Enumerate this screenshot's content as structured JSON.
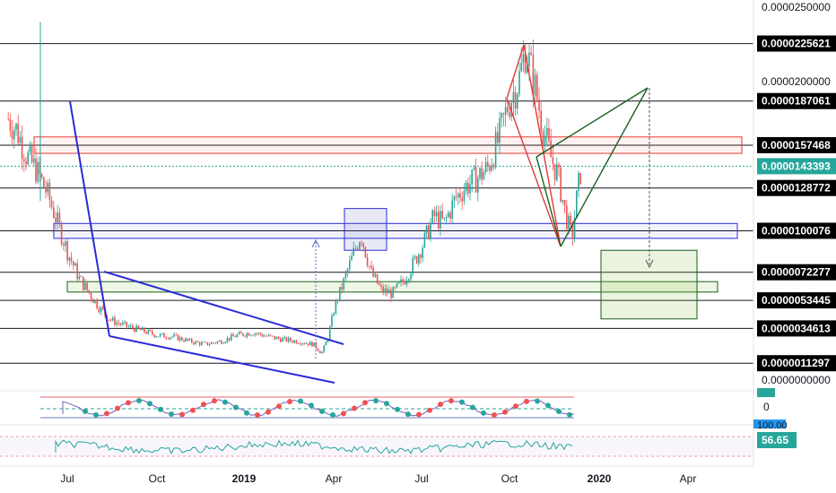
{
  "colors": {
    "background": "#ffffff",
    "up_candle": "#26a69a",
    "down_candle": "#ef5350",
    "hline": "#131722",
    "blue_drawing": "#2a2ad8",
    "red_drawing": "#e53935",
    "green_drawing": "#1b5e20",
    "current_price_line": "#26a69a",
    "rsi_line": "#26a69a",
    "osc_upper": "#ef9a9a",
    "osc_lower": "#9fa8da"
  },
  "price_axis": {
    "ticks": [
      "0.0000250000",
      "0.0000200000",
      "0.0000000000"
    ],
    "levels": [
      {
        "label": "0.0000225621",
        "value": 2.25621e-05
      },
      {
        "label": "0.0000187061",
        "value": 1.87061e-05
      },
      {
        "label": "0.0000157468",
        "value": 1.57468e-05
      },
      {
        "label": "0.0000128772",
        "value": 1.28772e-05
      },
      {
        "label": "0.0000100076",
        "value": 1.00076e-05
      },
      {
        "label": "0.0000072277",
        "value": 7.2277e-06
      },
      {
        "label": "0.0000053445",
        "value": 5.3445e-06
      },
      {
        "label": "0.0000034613",
        "value": 3.4613e-06
      },
      {
        "label": "0.0000011297",
        "value": 1.1297e-06
      }
    ],
    "current_price": "0.0000143393",
    "osc_zero": "0",
    "osc_hundred": "100.00",
    "rsi_value": "56.65"
  },
  "time_axis": [
    {
      "label": "Jul",
      "bold": false
    },
    {
      "label": "Oct",
      "bold": false
    },
    {
      "label": "2019",
      "bold": true
    },
    {
      "label": "Apr",
      "bold": false
    },
    {
      "label": "Jul",
      "bold": false
    },
    {
      "label": "Oct",
      "bold": false
    },
    {
      "label": "2020",
      "bold": true
    },
    {
      "label": "Apr",
      "bold": false
    }
  ],
  "chart_data": {
    "type": "candlestick",
    "ylim": [
      0,
      2.65e-05
    ],
    "x_range": [
      "2018-05-20",
      "2020-05-20"
    ],
    "price_path": [
      [
        "2018-05-28",
        1.75e-05
      ],
      [
        "2018-06-05",
        1.68e-05
      ],
      [
        "2018-06-15",
        1.5e-05
      ],
      [
        "2018-06-25",
        1.4e-05
      ],
      [
        "2018-07-05",
        1.25e-05
      ],
      [
        "2018-07-15",
        1.05e-05
      ],
      [
        "2018-07-25",
        8.5e-06
      ],
      [
        "2018-08-05",
        6.8e-06
      ],
      [
        "2018-08-15",
        5.8e-06
      ],
      [
        "2018-08-25",
        4.8e-06
      ],
      [
        "2018-09-05",
        4e-06
      ],
      [
        "2018-09-20",
        3.6e-06
      ],
      [
        "2018-10-05",
        3.3e-06
      ],
      [
        "2018-10-20",
        3e-06
      ],
      [
        "2018-11-05",
        2.9e-06
      ],
      [
        "2018-11-20",
        2.6e-06
      ],
      [
        "2018-12-05",
        2.4e-06
      ],
      [
        "2018-12-20",
        2.6e-06
      ],
      [
        "2019-01-05",
        3e-06
      ],
      [
        "2019-01-20",
        3.2e-06
      ],
      [
        "2019-02-05",
        2.9e-06
      ],
      [
        "2019-02-20",
        2.7e-06
      ],
      [
        "2019-03-05",
        2.6e-06
      ],
      [
        "2019-03-20",
        2.4e-06
      ],
      [
        "2019-03-28",
        1.8e-06
      ],
      [
        "2019-04-03",
        2.8e-06
      ],
      [
        "2019-04-10",
        5e-06
      ],
      [
        "2019-04-18",
        6.5e-06
      ],
      [
        "2019-04-28",
        8.5e-06
      ],
      [
        "2019-05-05",
        9.8e-06
      ],
      [
        "2019-05-15",
        7.2e-06
      ],
      [
        "2019-05-25",
        6e-06
      ],
      [
        "2019-06-05",
        5.8e-06
      ],
      [
        "2019-06-15",
        6.6e-06
      ],
      [
        "2019-06-25",
        7.8e-06
      ],
      [
        "2019-07-05",
        9.2e-06
      ],
      [
        "2019-07-15",
        1.1e-05
      ],
      [
        "2019-07-25",
        1.05e-05
      ],
      [
        "2019-08-05",
        1.22e-05
      ],
      [
        "2019-08-15",
        1.3e-05
      ],
      [
        "2019-08-25",
        1.35e-05
      ],
      [
        "2019-09-05",
        1.42e-05
      ],
      [
        "2019-09-15",
        1.6e-05
      ],
      [
        "2019-09-25",
        1.85e-05
      ],
      [
        "2019-10-05",
        2e-05
      ],
      [
        "2019-10-12",
        2.22e-05
      ],
      [
        "2019-10-20",
        2e-05
      ],
      [
        "2019-10-28",
        1.72e-05
      ],
      [
        "2019-11-05",
        1.5e-05
      ],
      [
        "2019-11-12",
        1.38e-05
      ],
      [
        "2019-11-20",
        1.1e-05
      ],
      [
        "2019-11-26",
        9.5e-06
      ],
      [
        "2019-12-01",
        1.25e-05
      ],
      [
        "2019-12-05",
        1.43e-05
      ]
    ],
    "horizontal_levels": [
      2.25621e-05,
      1.87061e-05,
      1.57468e-05,
      1.28772e-05,
      1.00076e-05,
      7.2277e-06,
      5.3445e-06,
      3.4613e-06,
      1.1297e-06
    ],
    "current_price": 1.43393e-05,
    "rsi_last": 56.65
  }
}
